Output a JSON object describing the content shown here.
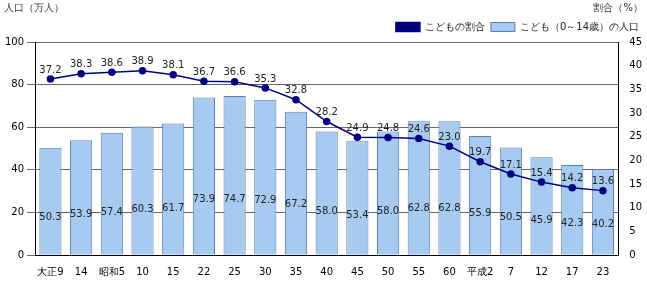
{
  "chart_data": {
    "type": "bar",
    "y_label": "人口（万人）",
    "y2_label": "割合（%）",
    "categories": [
      "大正9",
      "14",
      "昭和5",
      "10",
      "15",
      "22",
      "25",
      "30",
      "35",
      "40",
      "45",
      "50",
      "55",
      "60",
      "平成2",
      "7",
      "12",
      "17",
      "23"
    ],
    "series": [
      {
        "name": "こども（0～14歳）の人口",
        "type": "bar",
        "color": "#a6caf0",
        "values": [
          50.3,
          53.9,
          57.4,
          60.3,
          61.7,
          73.9,
          74.7,
          72.9,
          67.2,
          58.0,
          53.4,
          58.0,
          62.8,
          62.8,
          55.9,
          50.5,
          45.9,
          42.3,
          40.2
        ],
        "value_labels": [
          "50.3",
          "53.9",
          "57.4",
          "60.3",
          "61.7",
          "73.9",
          "74.7",
          "72.9",
          "67.2",
          "58.0",
          "53.4",
          "58.0",
          "62.8",
          "62.8",
          "55.9",
          "50.5",
          "45.9",
          "42.3",
          "40.2"
        ]
      },
      {
        "name": "こどもの割合",
        "type": "line",
        "axis": "y2",
        "color": "#000080",
        "marker": "circle",
        "values": [
          37.2,
          38.3,
          38.6,
          38.9,
          38.1,
          36.7,
          36.6,
          35.3,
          32.8,
          28.2,
          24.9,
          24.8,
          24.6,
          23.0,
          19.7,
          17.1,
          15.4,
          14.2,
          13.6
        ],
        "value_labels": [
          "37.2",
          "38.3",
          "38.6",
          "38.9",
          "38.1",
          "36.7",
          "36.6",
          "35.3",
          "32.8",
          "28.2",
          "24.9",
          "24.8",
          "24.6",
          "23.0",
          "19.7",
          "17.1",
          "15.4",
          "14.2",
          "13.6"
        ]
      }
    ],
    "ylim": [
      0,
      100
    ],
    "yticks": [
      0,
      20,
      40,
      60,
      80,
      100
    ],
    "y2lim": [
      0,
      45
    ],
    "y2ticks": [
      0,
      5,
      10,
      15,
      20,
      25,
      30,
      35,
      40,
      45
    ],
    "grid": true,
    "legend": "upper right",
    "data_labels": true
  }
}
